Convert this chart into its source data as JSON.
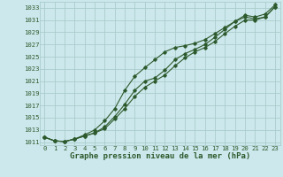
{
  "background_color": "#cde8ec",
  "grid_color": "#aacccc",
  "line_color": "#2d5a2d",
  "title": "Graphe pression niveau de la mer (hPa)",
  "xlim": [
    -0.5,
    23.5
  ],
  "ylim": [
    1010.5,
    1034.0
  ],
  "xticks": [
    0,
    1,
    2,
    3,
    4,
    5,
    6,
    7,
    8,
    9,
    10,
    11,
    12,
    13,
    14,
    15,
    16,
    17,
    18,
    19,
    20,
    21,
    22,
    23
  ],
  "yticks": [
    1011,
    1013,
    1015,
    1017,
    1019,
    1021,
    1023,
    1025,
    1027,
    1029,
    1031,
    1033
  ],
  "line1_x": [
    0,
    1,
    2,
    3,
    4,
    5,
    6,
    7,
    8,
    9,
    10,
    11,
    12,
    13,
    14,
    15,
    16,
    17,
    18,
    19,
    20,
    21,
    22,
    23
  ],
  "line1_y": [
    1011.8,
    1011.2,
    1011.1,
    1011.5,
    1012.0,
    1012.5,
    1013.5,
    1015.2,
    1017.2,
    1019.5,
    1021.0,
    1021.5,
    1022.8,
    1024.5,
    1025.5,
    1026.2,
    1027.0,
    1028.2,
    1029.5,
    1030.8,
    1031.5,
    1031.2,
    1031.5,
    1033.2
  ],
  "line2_x": [
    0,
    1,
    2,
    3,
    4,
    5,
    6,
    7,
    8,
    9,
    10,
    11,
    12,
    13,
    14,
    15,
    16,
    17,
    18,
    19,
    20,
    21,
    22,
    23
  ],
  "line2_y": [
    1011.8,
    1011.2,
    1011.1,
    1011.5,
    1012.2,
    1013.0,
    1014.5,
    1016.5,
    1019.5,
    1021.8,
    1023.2,
    1024.5,
    1025.8,
    1026.5,
    1026.8,
    1027.2,
    1027.8,
    1028.8,
    1029.8,
    1030.8,
    1031.8,
    1031.5,
    1032.0,
    1033.5
  ],
  "line3_x": [
    0,
    1,
    2,
    3,
    4,
    5,
    6,
    7,
    8,
    9,
    10,
    11,
    12,
    13,
    14,
    15,
    16,
    17,
    18,
    19,
    20,
    21,
    22,
    23
  ],
  "line3_y": [
    1011.8,
    1011.2,
    1011.1,
    1011.5,
    1012.0,
    1012.5,
    1013.2,
    1014.8,
    1016.5,
    1018.5,
    1020.0,
    1021.0,
    1022.0,
    1023.5,
    1024.8,
    1025.8,
    1026.5,
    1027.5,
    1028.8,
    1030.0,
    1031.0,
    1031.0,
    1031.5,
    1033.2
  ],
  "title_fontsize": 6.5,
  "tick_fontsize": 5.2,
  "marker_size": 1.8,
  "line_width": 0.8
}
